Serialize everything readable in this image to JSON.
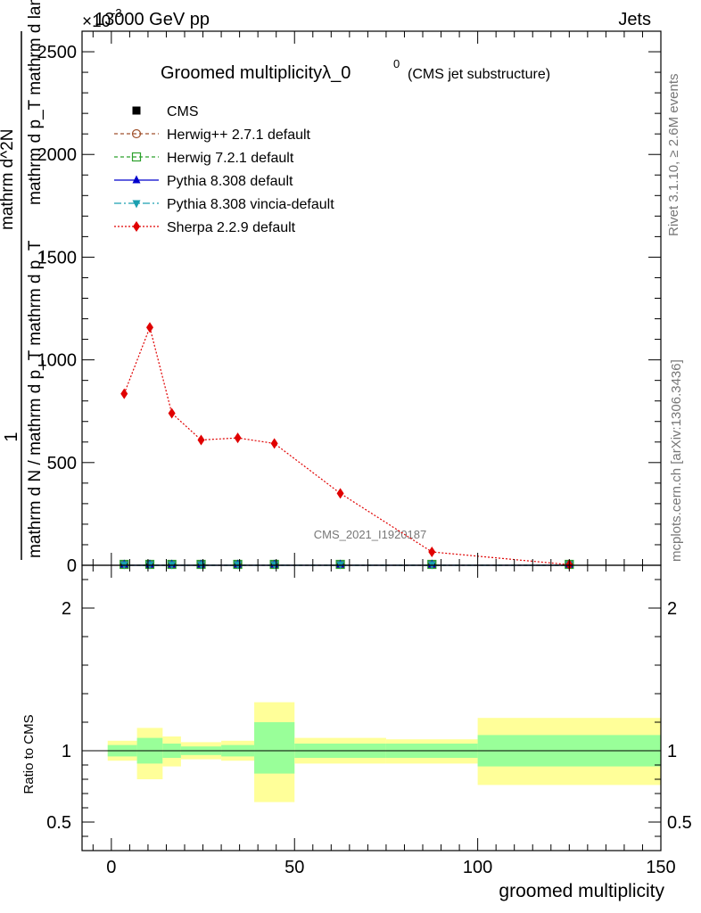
{
  "header": {
    "left": "13000 GeV pp",
    "right": "Jets",
    "exponent": "×10",
    "exponent_power": "-3"
  },
  "side_labels": {
    "rivet": "Rivet 3.1.10, ≥ 2.6M events",
    "mcplots": "mcplots.cern.ch [arXiv:1306.3436]"
  },
  "watermark": "CMS_2021_I1920187",
  "chart_data": [
    {
      "type": "line",
      "title": "Groomed multiplicity",
      "title_math": "λ_0",
      "title_sup": "0",
      "title_note": "(CMS jet substructure)",
      "ylabel_numerator": "1",
      "ylabel_denominator": "mathrm d N / mathrm d p_T mathrm d p_T",
      "ylabel_right": "mathrm d^2N",
      "ylabel_right2": "mathrm d p_T mathrm d lambda",
      "xlim": [
        -8,
        150
      ],
      "ylim": [
        0,
        2600
      ],
      "yticks": [
        0,
        500,
        1000,
        1500,
        2000,
        2500
      ],
      "ytick_labels": [
        "0",
        "500",
        "1000",
        "1500",
        "2000",
        "2500"
      ],
      "legend_position": "top-left",
      "series": [
        {
          "name": "CMS",
          "color": "#000000",
          "marker": "square-filled",
          "x": [
            3.5,
            10.5,
            16.5,
            24.5,
            34.5,
            44.5,
            62.5,
            87.5,
            125
          ],
          "y": [
            0,
            0,
            0,
            0,
            0,
            0,
            0,
            0,
            0
          ]
        },
        {
          "name": "Herwig++ 2.7.1 default",
          "color": "#a0522d",
          "marker": "circle-open",
          "dash": "4,3",
          "x": [
            3.5,
            10.5,
            16.5,
            24.5,
            34.5,
            44.5,
            62.5,
            87.5,
            125
          ],
          "y": [
            0,
            0,
            0,
            0,
            0,
            0,
            0,
            0,
            0
          ]
        },
        {
          "name": "Herwig 7.2.1 default",
          "color": "#2ca02c",
          "marker": "square-open",
          "dash": "4,3",
          "x": [
            3.5,
            10.5,
            16.5,
            24.5,
            34.5,
            44.5,
            62.5,
            87.5,
            125
          ],
          "y": [
            0,
            0,
            0,
            0,
            0,
            0,
            0,
            0,
            0
          ]
        },
        {
          "name": "Pythia 8.308 default",
          "color": "#0000cc",
          "marker": "triangle-up",
          "dash": "",
          "x": [
            3.5,
            10.5,
            16.5,
            24.5,
            34.5,
            44.5,
            62.5,
            87.5,
            125
          ],
          "y": [
            0,
            0,
            0,
            0,
            0,
            0,
            0,
            0,
            0
          ]
        },
        {
          "name": "Pythia 8.308 vincia-default",
          "color": "#1a9fb0",
          "marker": "triangle-down",
          "dash": "8,3,2,3",
          "x": [
            3.5,
            10.5,
            16.5,
            24.5,
            34.5,
            44.5,
            62.5,
            87.5,
            125
          ],
          "y": [
            0,
            0,
            0,
            0,
            0,
            0,
            0,
            0,
            0
          ]
        },
        {
          "name": "Sherpa 2.2.9 default",
          "color": "#e00000",
          "marker": "diamond",
          "dash": "2,2",
          "x": [
            3.5,
            10.5,
            16.5,
            24.5,
            34.5,
            44.5,
            62.5,
            87.5,
            125
          ],
          "y": [
            835,
            1158,
            740,
            610,
            620,
            593,
            350,
            65,
            3
          ]
        }
      ]
    },
    {
      "type": "area",
      "ylabel": "Ratio to CMS",
      "xlabel": "groomed multiplicity",
      "xlim": [
        -8,
        150
      ],
      "ylim": [
        0.3,
        2.3
      ],
      "yticks": [
        0.5,
        1,
        2
      ],
      "ytick_labels": [
        "0.5",
        "1",
        "2"
      ],
      "xticks": [
        0,
        50,
        100,
        150
      ],
      "xtick_labels": [
        "0",
        "50",
        "100",
        "150"
      ],
      "bins": [
        {
          "lo": -1,
          "hi": 7,
          "green": [
            0.96,
            1.04
          ],
          "yellow": [
            0.93,
            1.07
          ]
        },
        {
          "lo": 7,
          "hi": 14,
          "green": [
            0.91,
            1.09
          ],
          "yellow": [
            0.8,
            1.16
          ]
        },
        {
          "lo": 14,
          "hi": 19,
          "green": [
            0.95,
            1.05
          ],
          "yellow": [
            0.89,
            1.1
          ]
        },
        {
          "lo": 19,
          "hi": 30,
          "green": [
            0.97,
            1.03
          ],
          "yellow": [
            0.94,
            1.06
          ]
        },
        {
          "lo": 30,
          "hi": 39,
          "green": [
            0.96,
            1.04
          ],
          "yellow": [
            0.93,
            1.07
          ]
        },
        {
          "lo": 39,
          "hi": 50,
          "green": [
            0.84,
            1.2
          ],
          "yellow": [
            0.64,
            1.34
          ]
        },
        {
          "lo": 50,
          "hi": 75,
          "green": [
            0.95,
            1.05
          ],
          "yellow": [
            0.91,
            1.09
          ]
        },
        {
          "lo": 75,
          "hi": 100,
          "green": [
            0.95,
            1.05
          ],
          "yellow": [
            0.91,
            1.08
          ]
        },
        {
          "lo": 100,
          "hi": 150,
          "green": [
            0.89,
            1.11
          ],
          "yellow": [
            0.76,
            1.23
          ]
        }
      ]
    }
  ]
}
